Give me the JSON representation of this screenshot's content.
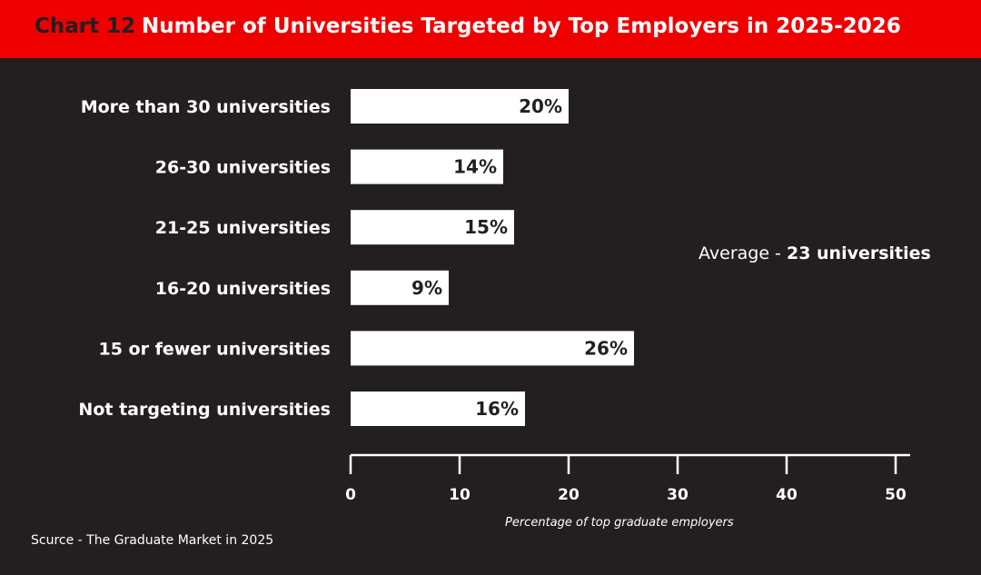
{
  "header": {
    "chart_number": "Chart 12",
    "title": "Number of Universities Targeted by Top Employers in 2025-2026"
  },
  "annotation": {
    "prefix": "Average - ",
    "value": "23 universities"
  },
  "source": "Scurce - The Graduate Market in 2025",
  "colors": {
    "header_bg": "#ee0000",
    "background": "#231f20",
    "bar": "#ffffff",
    "text": "#ffffff",
    "bar_label": "#231f20"
  },
  "chart_data": {
    "type": "bar",
    "orientation": "horizontal",
    "title": "Number of Universities Targeted by Top Employers in 2025-2026",
    "categories": [
      "More than 30 universities",
      "26-30 universities",
      "21-25 universities",
      "16-20 universities",
      "15 or fewer universities",
      "Not targeting universities"
    ],
    "values": [
      20,
      14,
      15,
      9,
      26,
      16
    ],
    "value_labels": [
      "20%",
      "14%",
      "15%",
      "9%",
      "26%",
      "16%"
    ],
    "xlabel": "Percentage of top graduate employers",
    "ylabel": "",
    "xlim": [
      0,
      50
    ],
    "xticks": [
      0,
      10,
      20,
      30,
      40,
      50
    ],
    "grid": false,
    "legend": "none"
  }
}
